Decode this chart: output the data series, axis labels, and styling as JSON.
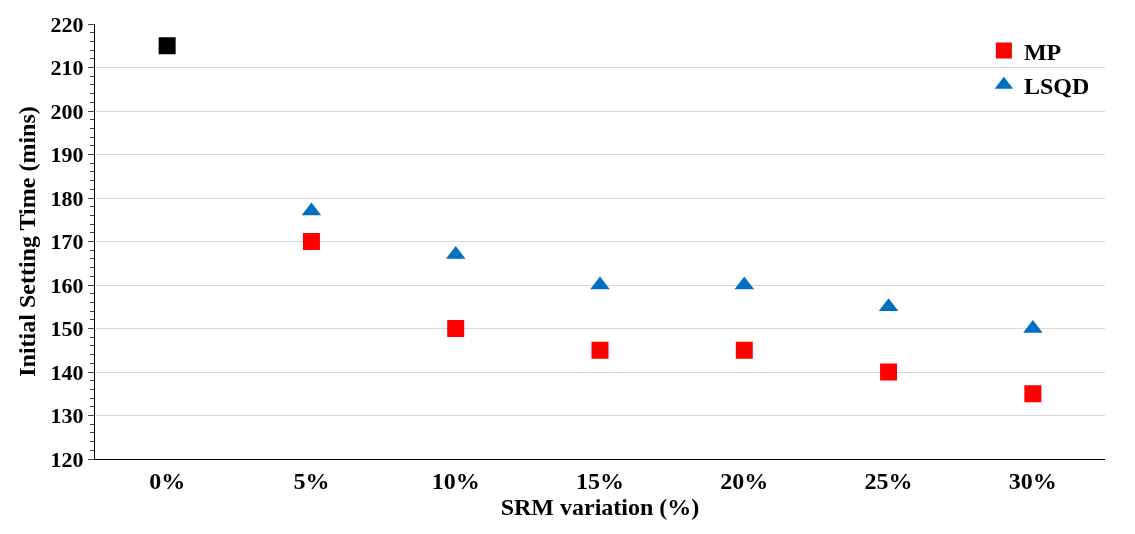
{
  "chart_data": {
    "type": "scatter",
    "xlabel": "SRM variation (%)",
    "ylabel": "Initial Setting Time (mins)",
    "categories": [
      "0%",
      "5%",
      "10%",
      "15%",
      "20%",
      "25%",
      "30%"
    ],
    "series": [
      {
        "color": "#000000",
        "marker": "square",
        "values": [
          215,
          null,
          null,
          null,
          null,
          null,
          null
        ]
      },
      {
        "name": "MP",
        "color": "#ff0000",
        "marker": "square",
        "values": [
          null,
          170,
          150,
          145,
          145,
          140,
          135
        ]
      },
      {
        "name": "LSQD",
        "color": "#0070c0",
        "marker": "triangle",
        "values": [
          null,
          177,
          167,
          160,
          160,
          155,
          150
        ]
      }
    ],
    "ylim": [
      120,
      220
    ],
    "yticks": [
      120,
      130,
      140,
      150,
      160,
      170,
      180,
      190,
      200,
      210,
      220
    ],
    "grid": "y",
    "legend": "top right"
  }
}
